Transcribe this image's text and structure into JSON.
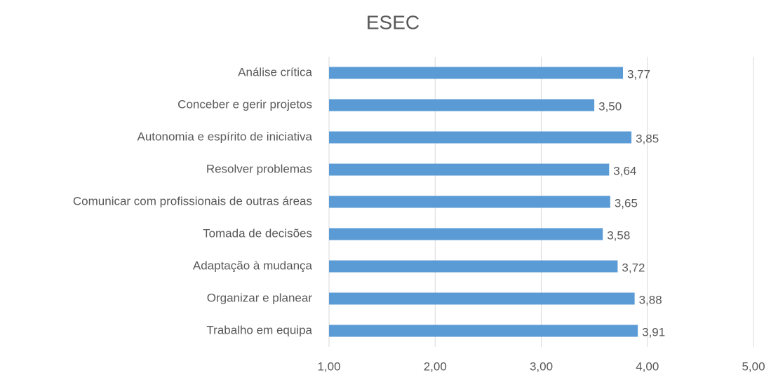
{
  "chart_data": {
    "type": "bar",
    "orientation": "horizontal",
    "title": "ESEC",
    "categories": [
      "Análise crítica",
      "Conceber e gerir projetos",
      "Autonomia e espírito de iniciativa",
      "Resolver problemas",
      "Comunicar com profissionais de outras áreas",
      "Tomada de decisões",
      "Adaptação à mudança",
      "Organizar e planear",
      "Trabalho em equipa"
    ],
    "values": [
      3.77,
      3.5,
      3.85,
      3.64,
      3.65,
      3.58,
      3.72,
      3.88,
      3.91
    ],
    "value_labels": [
      "3,77",
      "3,50",
      "3,85",
      "3,64",
      "3,65",
      "3,58",
      "3,72",
      "3,88",
      "3,91"
    ],
    "color": "#5b9bd5",
    "xlim": [
      1,
      5
    ],
    "xticks": [
      {
        "value": 1,
        "label": "1,00"
      },
      {
        "value": 2,
        "label": "2,00"
      },
      {
        "value": 3,
        "label": "3,00"
      },
      {
        "value": 4,
        "label": "4,00"
      },
      {
        "value": 5,
        "label": "5,00"
      }
    ],
    "grid": true
  }
}
